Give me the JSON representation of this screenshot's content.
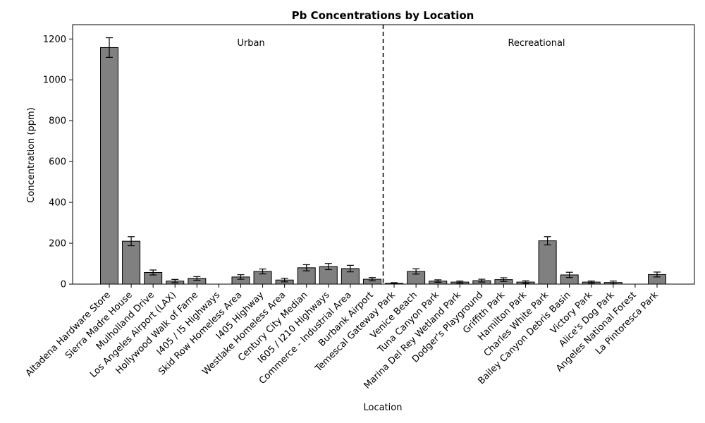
{
  "chart_data": {
    "type": "bar",
    "title": "Pb Concentrations by Location",
    "xlabel": "Location",
    "ylabel": "Concentration (ppm)",
    "ylim": [
      0,
      1270
    ],
    "yticks": [
      0,
      200,
      400,
      600,
      800,
      1000,
      1200
    ],
    "grid": false,
    "bar_color": "#808080",
    "edge_color": "#000000",
    "categories": [
      "Altadena Hardware Store",
      "Sierra Madre House",
      "Mulholland Drive",
      "Los Angeles Airport (LAX)",
      "Hollywood Walk of Fame",
      "I405 / I5 Highways",
      "Skid Row Homeless Area",
      "I405 Highway",
      "Westlake Homeless Area",
      "Century City Median",
      "I605 / I210 Highways",
      "Commerce - Industrial Area",
      "Burbank Airport",
      "Temescal Gateway Park",
      "Venice Beach",
      "Tuna Canyon Park",
      "Marina Del Rey Wetland Park",
      "Dodger's Playground",
      "Griffith Park",
      "Hamilton Park",
      "Charles White Park",
      "Bailey Canyon Debris Basin",
      "Victory Park",
      "Alice's Dog Park",
      "Angeles National Forest",
      "La Pintoresca Park"
    ],
    "values": [
      1158,
      210,
      57,
      15,
      28,
      0,
      35,
      62,
      20,
      80,
      86,
      76,
      24,
      4,
      62,
      15,
      10,
      17,
      22,
      10,
      212,
      45,
      10,
      8,
      0,
      47
    ],
    "errors": [
      48,
      22,
      12,
      8,
      9,
      0,
      11,
      12,
      9,
      15,
      15,
      16,
      8,
      3,
      13,
      6,
      5,
      7,
      9,
      6,
      20,
      13,
      5,
      7,
      0,
      12
    ],
    "groups": [
      {
        "label": "Urban"
      },
      {
        "label": "Recreational"
      }
    ],
    "divider_after_index": 12
  }
}
